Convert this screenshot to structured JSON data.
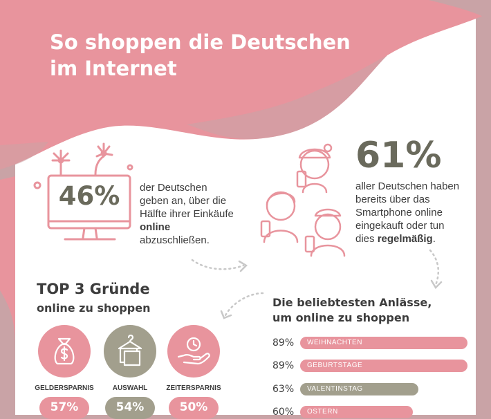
{
  "header": {
    "title_line1": "So shoppen die Deutschen",
    "title_line2": "im Internet"
  },
  "colors": {
    "pink": "#e8949d",
    "olive": "#a29f8d",
    "dark": "#6a6a5c",
    "panel": "#ffffff"
  },
  "stat_monitor": {
    "value": "46%",
    "text_1": "der Deutschen geben an, über die Hälfte ihrer Einkäufe ",
    "text_bold": "online",
    "text_2": " abzuschließen.",
    "icon": "monitor-icon"
  },
  "stat_smartphone": {
    "value": "61%",
    "text_1": "aller Deutschen haben bereits über das Smartphone online eingekauft oder tun dies ",
    "text_bold": "regelmäßig",
    "text_2": ".",
    "icon": "people-with-phones-icon"
  },
  "reasons": {
    "title": "TOP 3 Gründe",
    "subtitle": "online zu shoppen",
    "items": [
      {
        "label": "GELDERSPARNIS",
        "value": "57%",
        "icon": "money-bag-icon",
        "color": "#e8949d"
      },
      {
        "label": "AUSWAHL",
        "value": "54%",
        "icon": "clothes-icon",
        "color": "#a29f8d"
      },
      {
        "label": "ZEITERSPARNIS",
        "value": "50%",
        "icon": "time-in-hand-icon",
        "color": "#e8949d"
      }
    ]
  },
  "occasions": {
    "title_line1": "Die beliebtesten Anlässe,",
    "title_line2": "um online zu shoppen",
    "items": [
      {
        "pct_text": "89%",
        "value": 89,
        "label": "WEIHNACHTEN",
        "color": "#e8949d"
      },
      {
        "pct_text": "89%",
        "value": 89,
        "label": "GEBURTSTAGE",
        "color": "#e8949d"
      },
      {
        "pct_text": "63%",
        "value": 63,
        "label": "VALENTINSTAG",
        "color": "#a29f8d"
      },
      {
        "pct_text": "60%",
        "value": 60,
        "label": "OSTERN",
        "color": "#e8949d"
      }
    ]
  }
}
